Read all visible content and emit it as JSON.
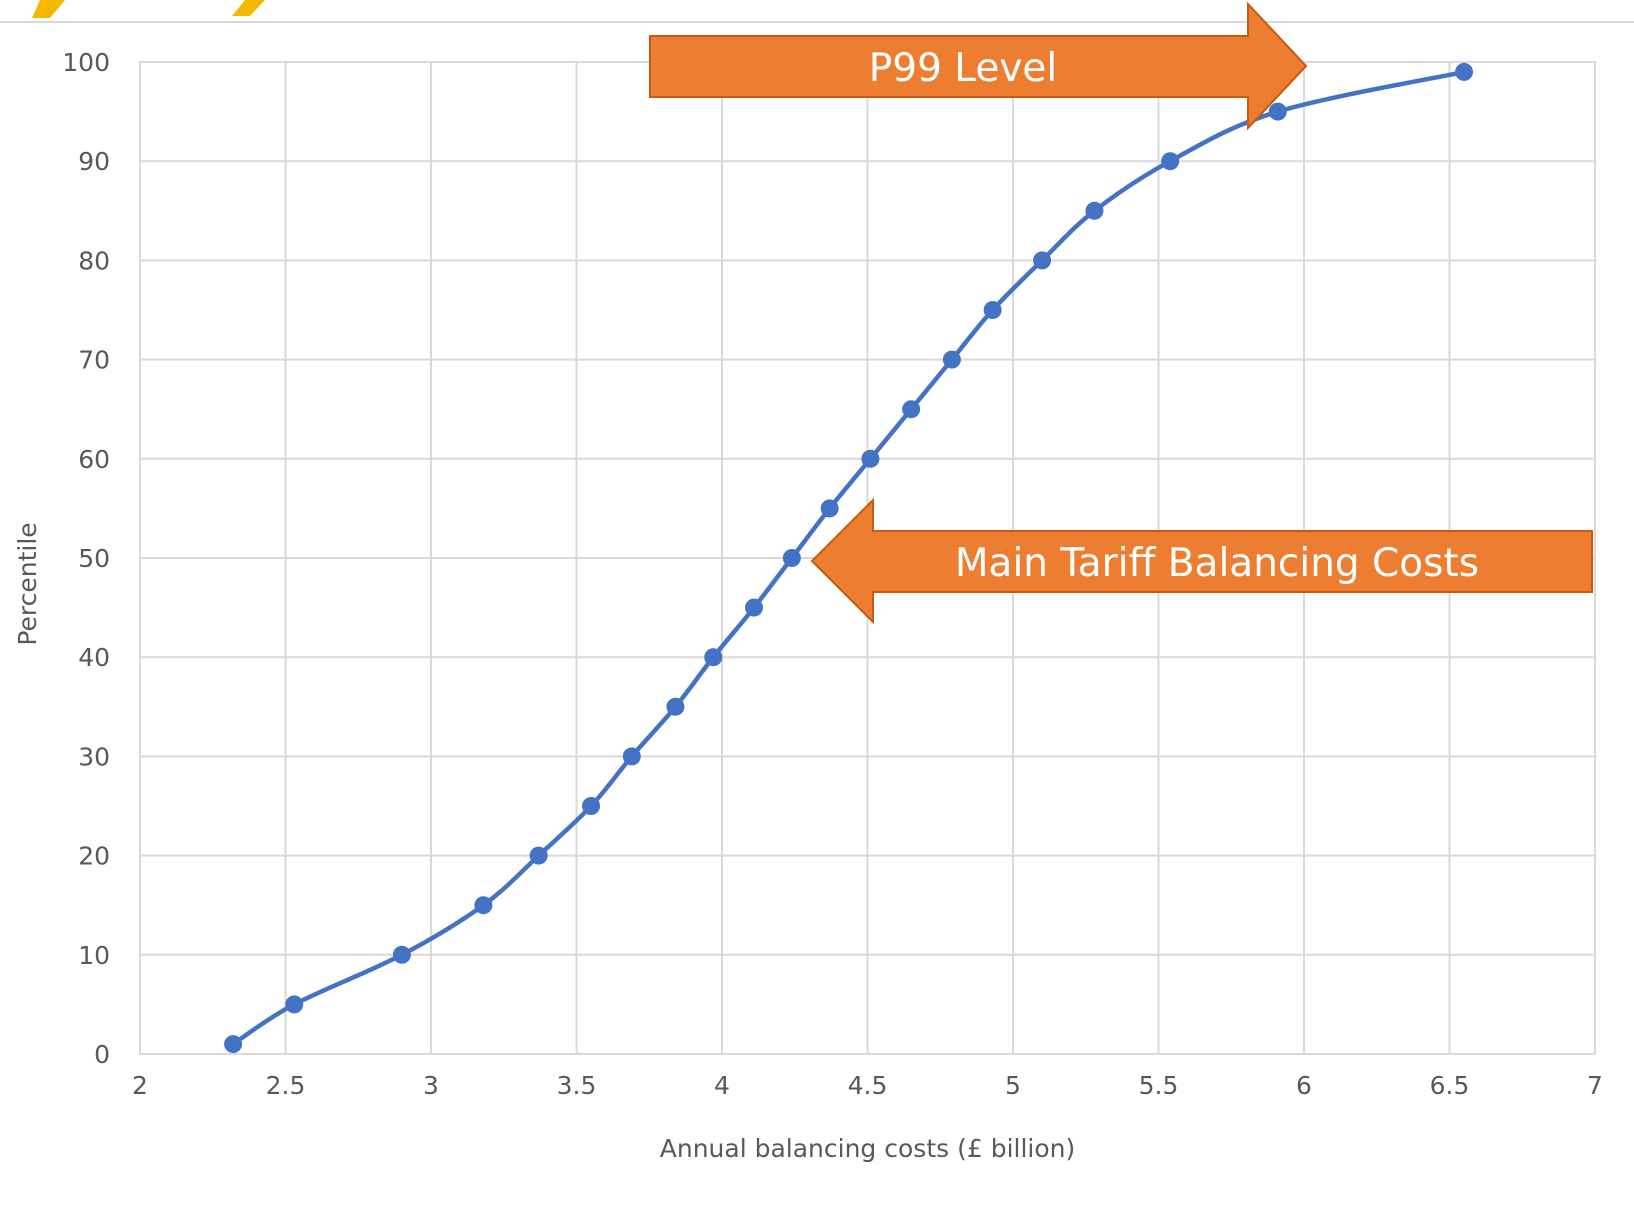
{
  "chart_data": {
    "type": "line",
    "title": "",
    "xlabel": "Annual balancing costs (£ billion)",
    "ylabel": "Percentile",
    "xlim": [
      2,
      7
    ],
    "ylim": [
      0,
      100
    ],
    "x_ticks": [
      2,
      2.5,
      3,
      3.5,
      4,
      4.5,
      5,
      5.5,
      6,
      6.5,
      7
    ],
    "x_tick_labels": [
      "2",
      "2.5",
      "3",
      "3.5",
      "4",
      "4.5",
      "5",
      "5.5",
      "6",
      "6.5",
      "7"
    ],
    "y_ticks": [
      0,
      10,
      20,
      30,
      40,
      50,
      60,
      70,
      80,
      90,
      100
    ],
    "y_tick_labels": [
      "0",
      "10",
      "20",
      "30",
      "40",
      "50",
      "60",
      "70",
      "80",
      "90",
      "100"
    ],
    "grid": true,
    "legend": "none",
    "series": [
      {
        "x": [
          2.32,
          2.53,
          2.9,
          3.18,
          3.37,
          3.55,
          3.69,
          3.84,
          3.97,
          4.11,
          4.24,
          4.37,
          4.51,
          4.65,
          4.79,
          4.93,
          5.1,
          5.28,
          5.54,
          5.91,
          6.55
        ],
        "y": [
          1,
          5,
          10,
          15,
          20,
          25,
          30,
          35,
          40,
          45,
          50,
          55,
          60,
          65,
          70,
          75,
          80,
          85,
          90,
          95,
          99
        ]
      }
    ],
    "annotations": [
      {
        "text": "P99 Level",
        "direction": "right",
        "target": [
          6.0,
          99
        ]
      },
      {
        "text": "Main Tariff Balancing Costs",
        "direction": "left",
        "target": [
          4.24,
          50
        ]
      }
    ],
    "colors": {
      "line": "#4472c4",
      "marker": "#4472c4",
      "grid": "#d9d9d9",
      "callout_fill": "#ed7d31",
      "callout_border": "#c55a11",
      "callout_text": "#ffffff",
      "top_rule": "#d9d9d9",
      "accent_logo": "#f5b800"
    }
  }
}
